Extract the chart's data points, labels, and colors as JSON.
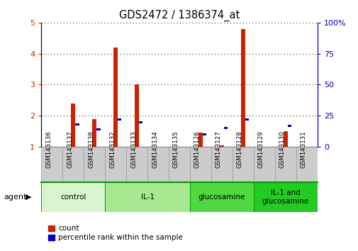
{
  "title": "GDS2472 / 1386374_at",
  "samples": [
    "GSM143136",
    "GSM143137",
    "GSM143138",
    "GSM143132",
    "GSM143133",
    "GSM143134",
    "GSM143135",
    "GSM143126",
    "GSM143127",
    "GSM143128",
    "GSM143129",
    "GSM143130",
    "GSM143131"
  ],
  "red_values": [
    1.0,
    2.4,
    1.9,
    4.2,
    3.0,
    1.0,
    1.0,
    1.45,
    1.05,
    4.8,
    1.0,
    1.5,
    1.0
  ],
  "blue_values": [
    0,
    18,
    14,
    22,
    20,
    0,
    0,
    10,
    15,
    22,
    0,
    17,
    0
  ],
  "groups": [
    {
      "label": "control",
      "start": 0,
      "end": 3,
      "color": "#d8f5d0"
    },
    {
      "label": "IL-1",
      "start": 3,
      "end": 7,
      "color": "#a8e890"
    },
    {
      "label": "glucosamine",
      "start": 7,
      "end": 10,
      "color": "#50d840"
    },
    {
      "label": "IL-1 and\nglucosamine",
      "start": 10,
      "end": 13,
      "color": "#22cc22"
    }
  ],
  "ylim_left": [
    1,
    5
  ],
  "ylim_right": [
    0,
    100
  ],
  "yticks_left": [
    1,
    2,
    3,
    4,
    5
  ],
  "yticks_right": [
    0,
    25,
    50,
    75,
    100
  ],
  "ytick_labels_left": [
    "1",
    "2",
    "3",
    "4",
    "5"
  ],
  "ytick_labels_right": [
    "0",
    "25",
    "50",
    "75",
    "100%"
  ],
  "red_color": "#cc2200",
  "blue_color": "#0000cc",
  "axis_color_left": "#cc2200",
  "axis_color_right": "#0000bb",
  "sample_bg_color": "#cccccc",
  "agent_label": "agent",
  "legend_count": "count",
  "legend_percentile": "percentile rank within the sample"
}
